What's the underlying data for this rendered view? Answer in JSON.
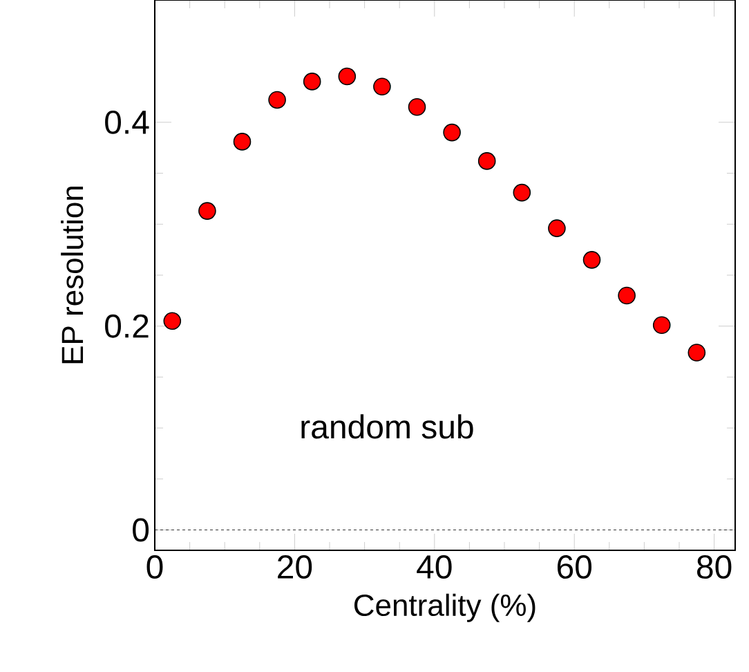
{
  "chart_data": {
    "type": "scatter",
    "xlabel": "Centrality (%)",
    "ylabel": "EP resolution",
    "annotations": [
      "random sub"
    ],
    "x": [
      2.5,
      7.5,
      12.5,
      17.5,
      22.5,
      27.5,
      32.5,
      37.5,
      42.5,
      47.5,
      52.5,
      57.5,
      62.5,
      67.5,
      72.5,
      77.5
    ],
    "series": [
      {
        "color": "#ff0000",
        "values": [
          0.205,
          0.313,
          0.381,
          0.422,
          0.44,
          0.445,
          0.435,
          0.415,
          0.39,
          0.362,
          0.331,
          0.296,
          0.265,
          0.23,
          0.201,
          0.174
        ]
      }
    ],
    "xlim": [
      0,
      83
    ],
    "ylim": [
      -0.02,
      0.52
    ],
    "xticks": [
      0,
      20,
      40,
      60,
      80
    ],
    "yticks": [
      0,
      0.2,
      0.4
    ],
    "ref_lines": [
      {
        "axis": "y",
        "value": 0,
        "line_style": "dashed"
      }
    ],
    "grid": false
  }
}
